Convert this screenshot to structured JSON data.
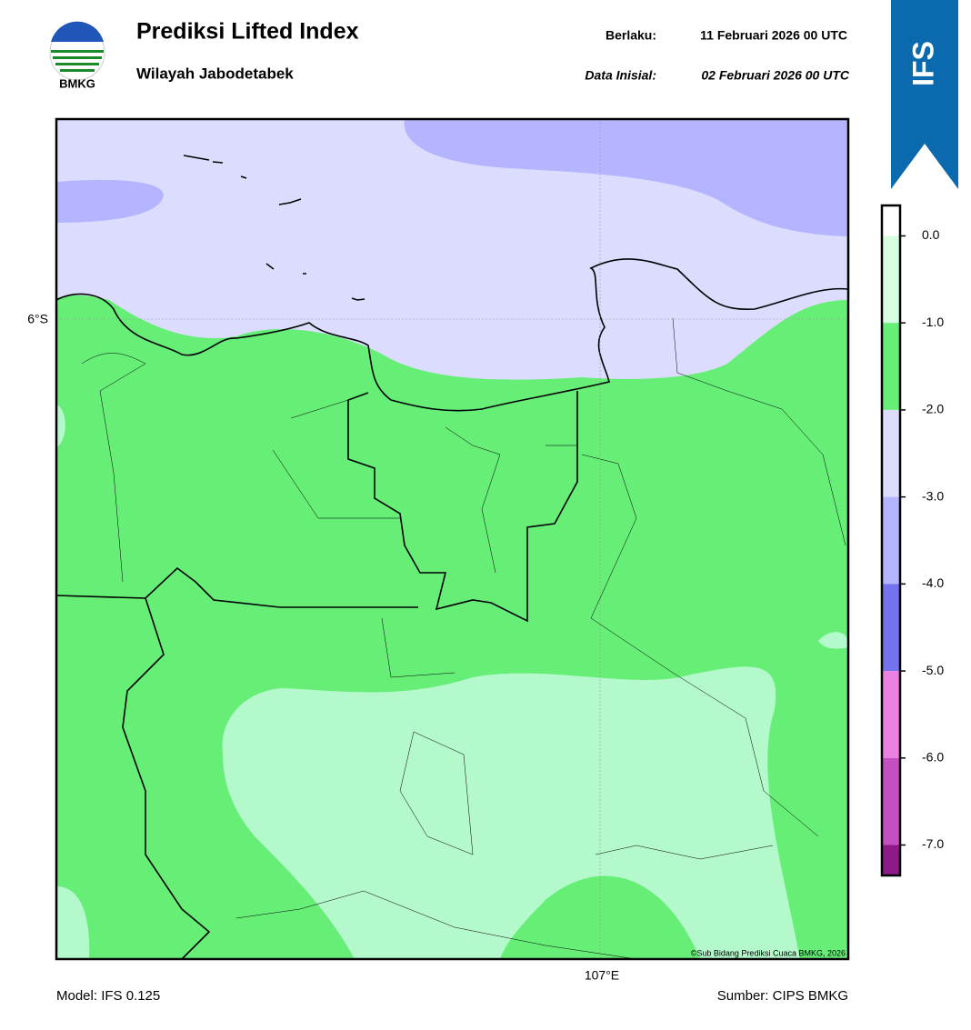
{
  "header": {
    "logo_text": "BMKG",
    "title": "Prediksi Lifted Index",
    "subtitle": "Wilayah Jabodetabek",
    "valid_label": "Berlaku:",
    "valid_value": "11 Februari 2026 00 UTC",
    "init_label": "Data Inisial:",
    "init_value": "02 Februari 2026 00 UTC",
    "model_badge": "IFS"
  },
  "map": {
    "lat_label": "6°S",
    "lon_label": "107°E",
    "copyright": "©Sub Bidang Prediksi Cuaca BMKG, 2026"
  },
  "colorbar": {
    "lim": [
      -7.35,
      0.35
    ],
    "ticks": [
      {
        "value": 0,
        "label": "0.0"
      },
      {
        "value": -1,
        "label": "-1.0"
      },
      {
        "value": -2,
        "label": "-2.0"
      },
      {
        "value": -3,
        "label": "-3.0"
      },
      {
        "value": -4,
        "label": "-4.0"
      },
      {
        "value": -5,
        "label": "-5.0"
      },
      {
        "value": -6,
        "label": "-6.0"
      },
      {
        "value": -7,
        "label": "-7.0"
      }
    ],
    "colors": [
      "#ffffff",
      "#d6ffe2",
      "#66ee77",
      "#dcdcff",
      "#b4b4ff",
      "#7373ee",
      "#ea80e2",
      "#c44fc2",
      "#8c1a88"
    ]
  },
  "footer": {
    "model": "Model: IFS 0.125",
    "source": "Sumber: CIPS BMKG"
  }
}
